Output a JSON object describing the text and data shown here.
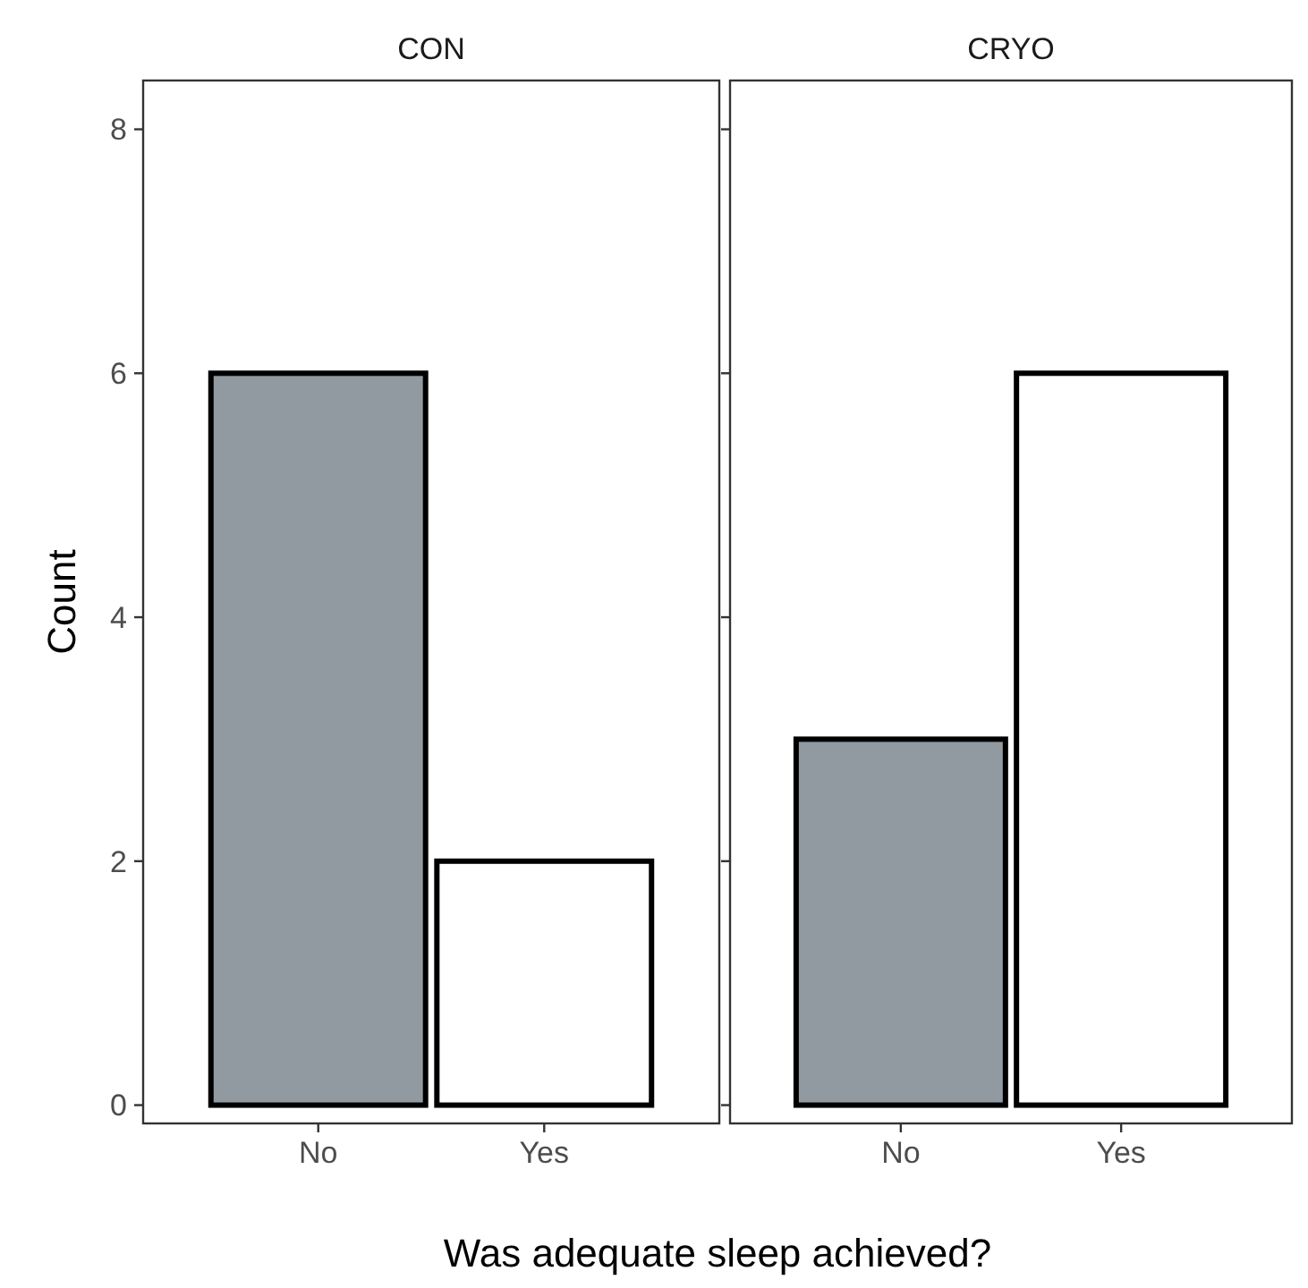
{
  "chart_data": [
    {
      "type": "bar",
      "title": "CON",
      "ylabel": "Count",
      "xlabel": "Was adequate sleep achieved?",
      "categories": [
        "No",
        "Yes"
      ],
      "values": [
        6,
        2
      ],
      "colors": [
        "#9199a1",
        "#ffffff"
      ],
      "ylim": [
        -0.15,
        8.4
      ],
      "yticks": [
        0,
        2,
        4,
        6,
        8
      ],
      "grid": false
    },
    {
      "type": "bar",
      "title": "CRYO",
      "categories": [
        "No",
        "Yes"
      ],
      "values": [
        3,
        6
      ],
      "colors": [
        "#9199a1",
        "#ffffff"
      ],
      "ylim": [
        -0.15,
        8.4
      ],
      "yticks": [
        0,
        2,
        4,
        6,
        8
      ],
      "grid": false,
      "tick_labels": "x"
    }
  ]
}
